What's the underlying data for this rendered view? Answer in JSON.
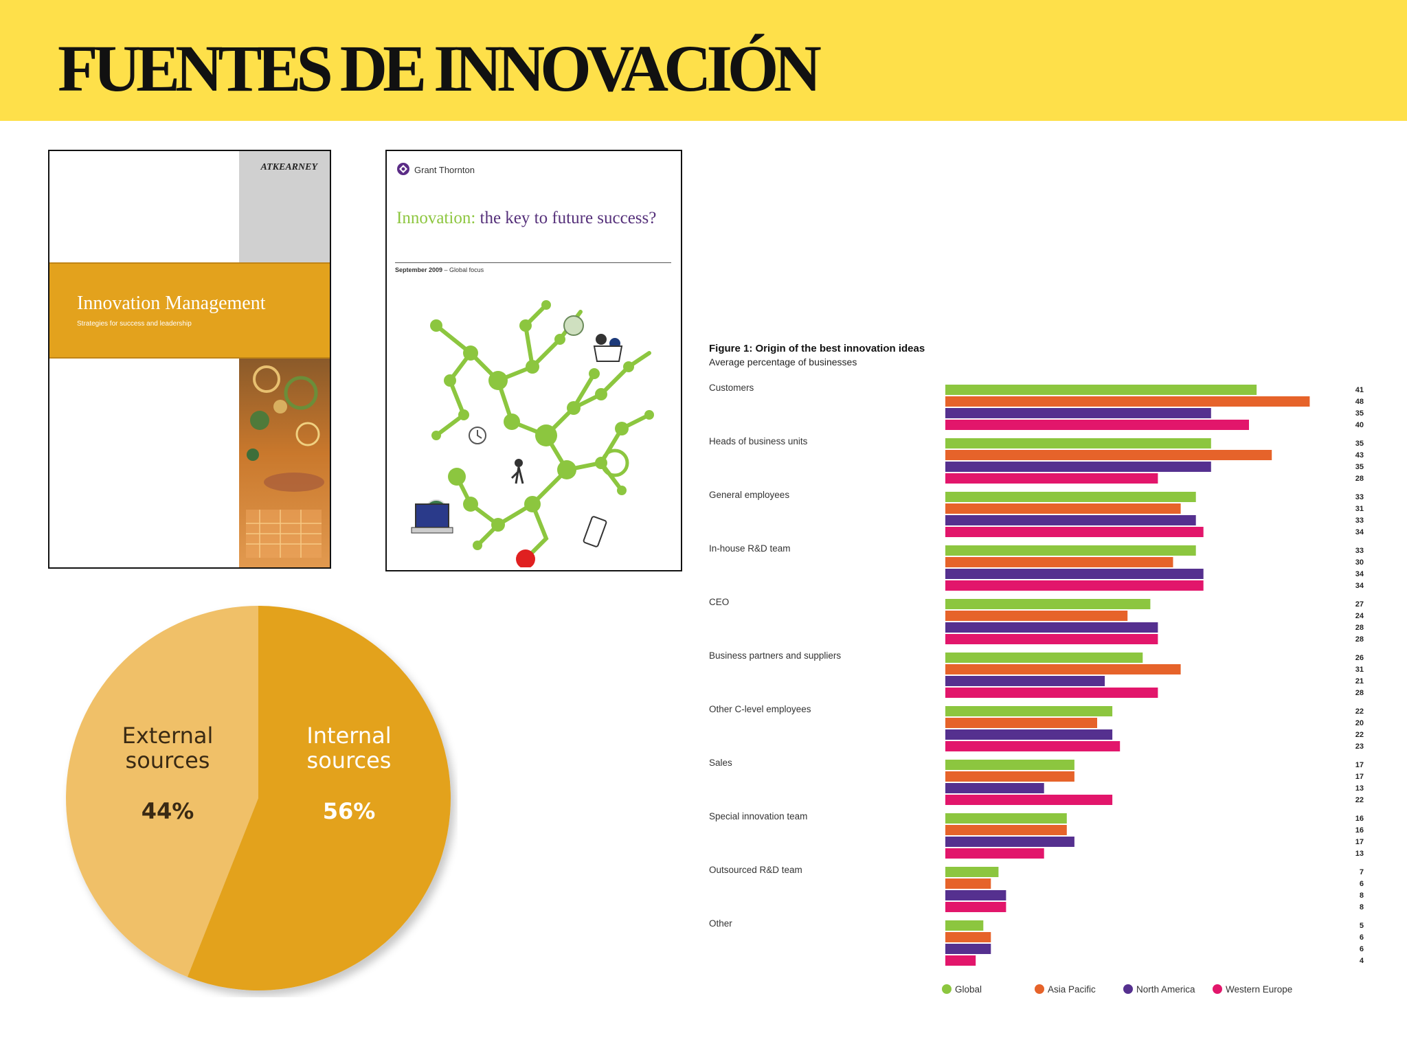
{
  "slide": {
    "title": "FUENTES DE INNOVACIÓN"
  },
  "covers": {
    "atkearney": {
      "logo": "ATKEARNEY",
      "title": "Innovation Management",
      "subtitle": "Strategies for success and leadership"
    },
    "grant_thornton": {
      "logo": "Grant Thornton",
      "title_accent": "Innovation:",
      "title_rest": " the key to future success?",
      "date": "September 2009",
      "date_suffix": " – Global focus"
    }
  },
  "chart_data": [
    {
      "type": "pie",
      "slices": [
        {
          "label": "External sources",
          "value": 44,
          "display": "44%",
          "color": "#f0c068"
        },
        {
          "label": "Internal sources",
          "value": 56,
          "display": "56%",
          "color": "#e3a21d"
        }
      ]
    },
    {
      "type": "bar",
      "orientation": "horizontal",
      "title": "Figure 1: Origin of the best innovation ideas",
      "subtitle": "Average percentage of businesses",
      "categories": [
        "Customers",
        "Heads of business units",
        "General employees",
        "In-house R&D team",
        "CEO",
        "Business partners and suppliers",
        "Other C-level employees",
        "Sales",
        "Special innovation team",
        "Outsourced R&D team",
        "Other"
      ],
      "series": [
        {
          "name": "Global",
          "color": "#8cc63f",
          "values": [
            41,
            35,
            33,
            33,
            27,
            26,
            22,
            17,
            16,
            7,
            5
          ]
        },
        {
          "name": "Asia Pacific",
          "color": "#e6632a",
          "values": [
            48,
            43,
            31,
            30,
            24,
            31,
            20,
            17,
            16,
            6,
            6
          ]
        },
        {
          "name": "North America",
          "color": "#55308f",
          "values": [
            35,
            35,
            33,
            34,
            28,
            21,
            22,
            13,
            17,
            8,
            6
          ]
        },
        {
          "name": "Western Europe",
          "color": "#e2166b",
          "values": [
            40,
            28,
            34,
            34,
            28,
            28,
            23,
            22,
            13,
            8,
            4
          ]
        }
      ],
      "xlim": [
        0,
        50
      ],
      "grid": false,
      "legend_position": "bottom"
    }
  ]
}
